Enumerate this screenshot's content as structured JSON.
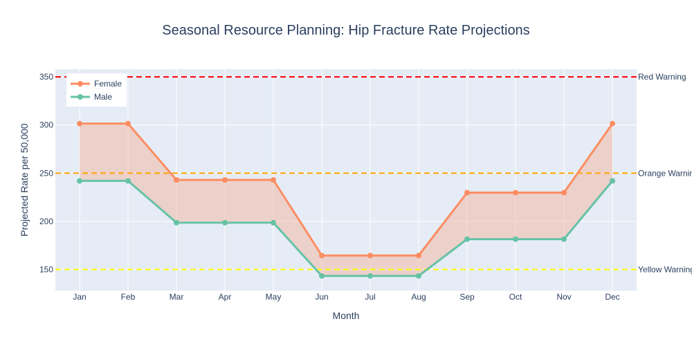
{
  "chart_data": {
    "type": "line",
    "title": "Seasonal Resource Planning: Hip Fracture Rate Projections",
    "xlabel": "Month",
    "ylabel": "Projected Rate per 50,000",
    "categories": [
      "Jan",
      "Feb",
      "Mar",
      "Apr",
      "May",
      "Jun",
      "Jul",
      "Aug",
      "Sep",
      "Oct",
      "Nov",
      "Dec"
    ],
    "ylim": [
      128,
      358
    ],
    "yticks": [
      150,
      200,
      250,
      300,
      350
    ],
    "grid": true,
    "legend_position": "top-left",
    "series": [
      {
        "name": "Female",
        "color": "#fc8d62",
        "values": [
          301.5,
          301.5,
          243,
          243,
          243,
          164.5,
          164.5,
          164.5,
          229.8,
          229.8,
          229.8,
          301.5
        ]
      },
      {
        "name": "Male",
        "color": "#66c2a5",
        "values": [
          242,
          242,
          198.6,
          198.6,
          198.6,
          143.3,
          143.3,
          143.3,
          181.5,
          181.5,
          181.5,
          242
        ]
      }
    ],
    "fill_between": {
      "color": "rgba(252,141,98,0.3)"
    },
    "thresholds": [
      {
        "label": "Red Warning",
        "value": 350,
        "color": "#ff0000"
      },
      {
        "label": "Orange Warning",
        "value": 250,
        "color": "#ffa500"
      },
      {
        "label": "Yellow Warning",
        "value": 150,
        "color": "#ffff00"
      }
    ]
  }
}
